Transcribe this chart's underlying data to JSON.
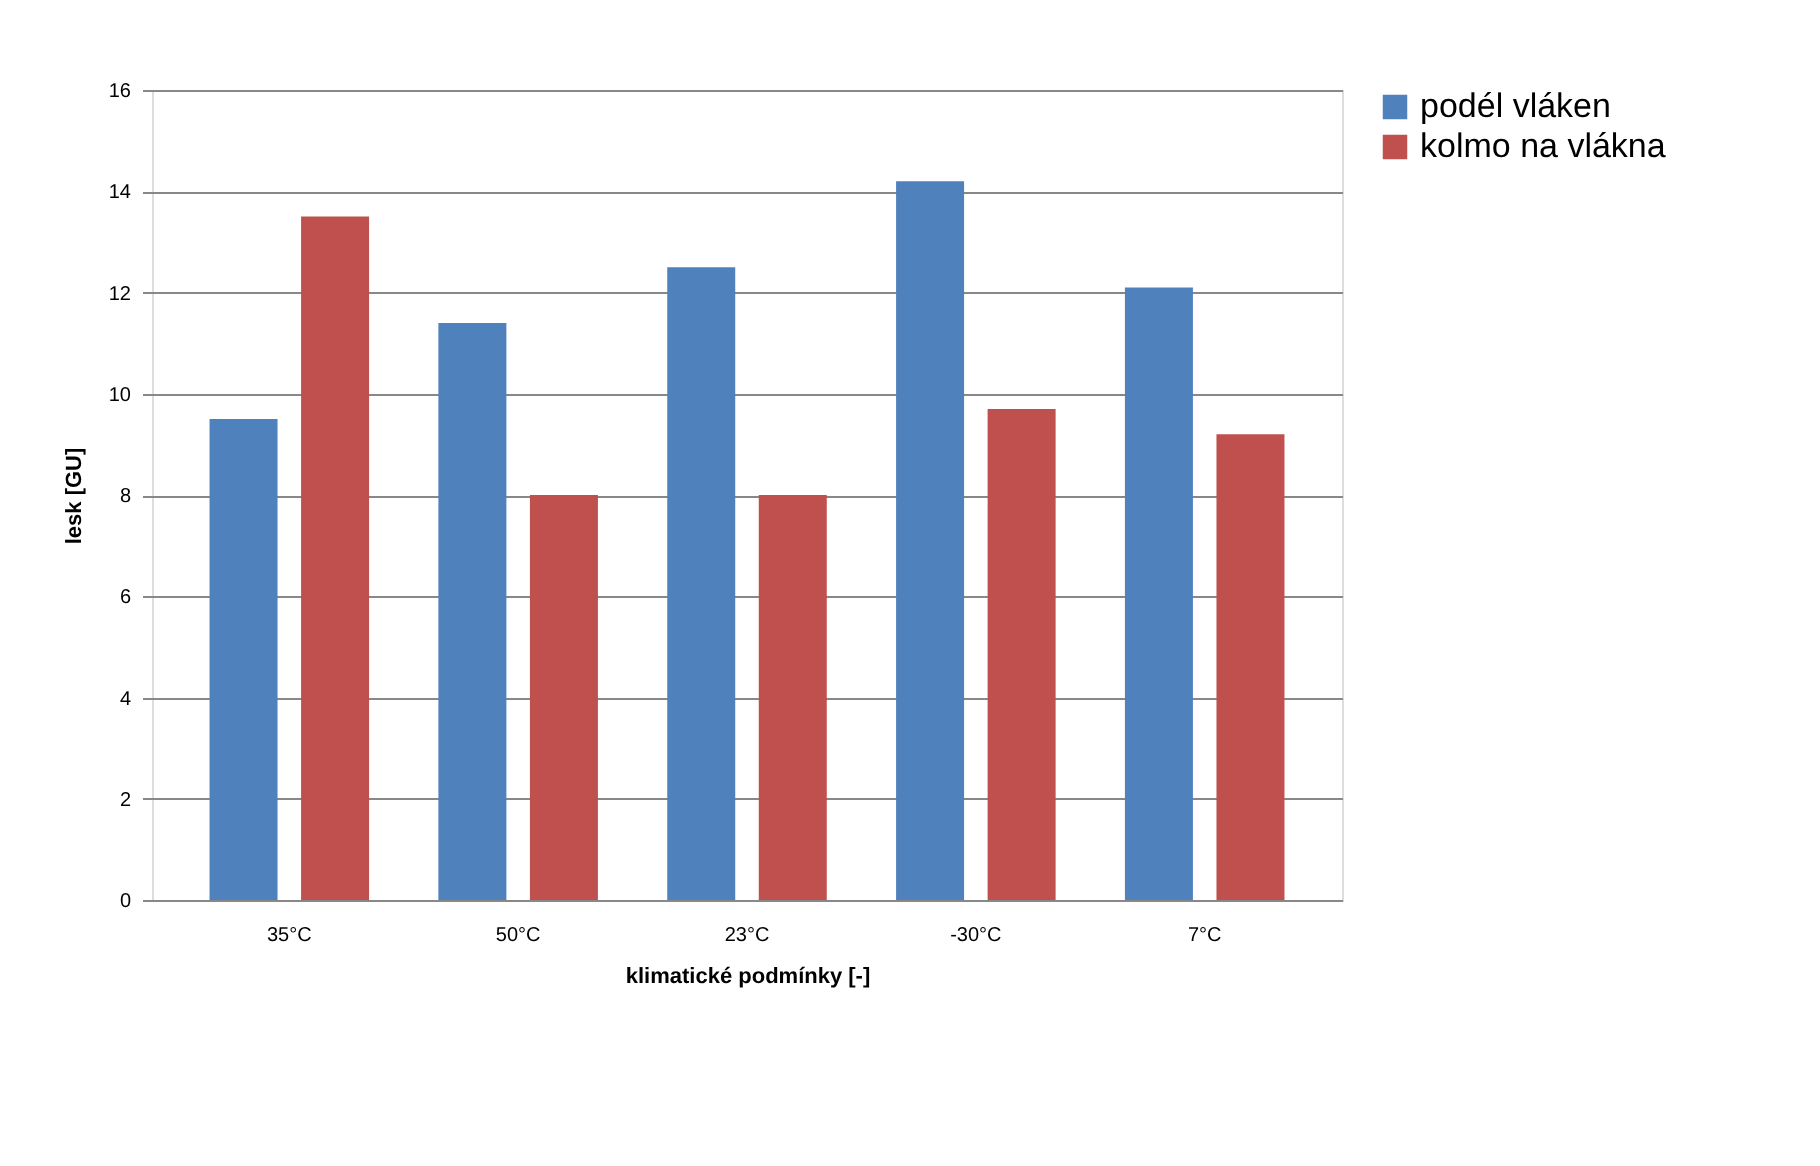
{
  "chart_data": {
    "type": "bar",
    "xlabel": "klimatické podmínky [-]",
    "ylabel": "lesk [GU]",
    "categories": [
      "35°C",
      "50°C",
      "23°C",
      "-30°C",
      "7°C"
    ],
    "series": [
      {
        "name": "podél vláken",
        "color": "#4f81bd",
        "values": [
          9.5,
          11.4,
          12.5,
          14.2,
          12.1
        ]
      },
      {
        "name": "kolmo na vlákna",
        "color": "#c0504d",
        "values": [
          13.5,
          8.0,
          8.0,
          9.7,
          9.2
        ]
      }
    ],
    "ylim": [
      0,
      16
    ],
    "yticks": [
      0,
      2,
      4,
      6,
      8,
      10,
      12,
      14,
      16
    ],
    "grid": "y",
    "legend": "right"
  }
}
